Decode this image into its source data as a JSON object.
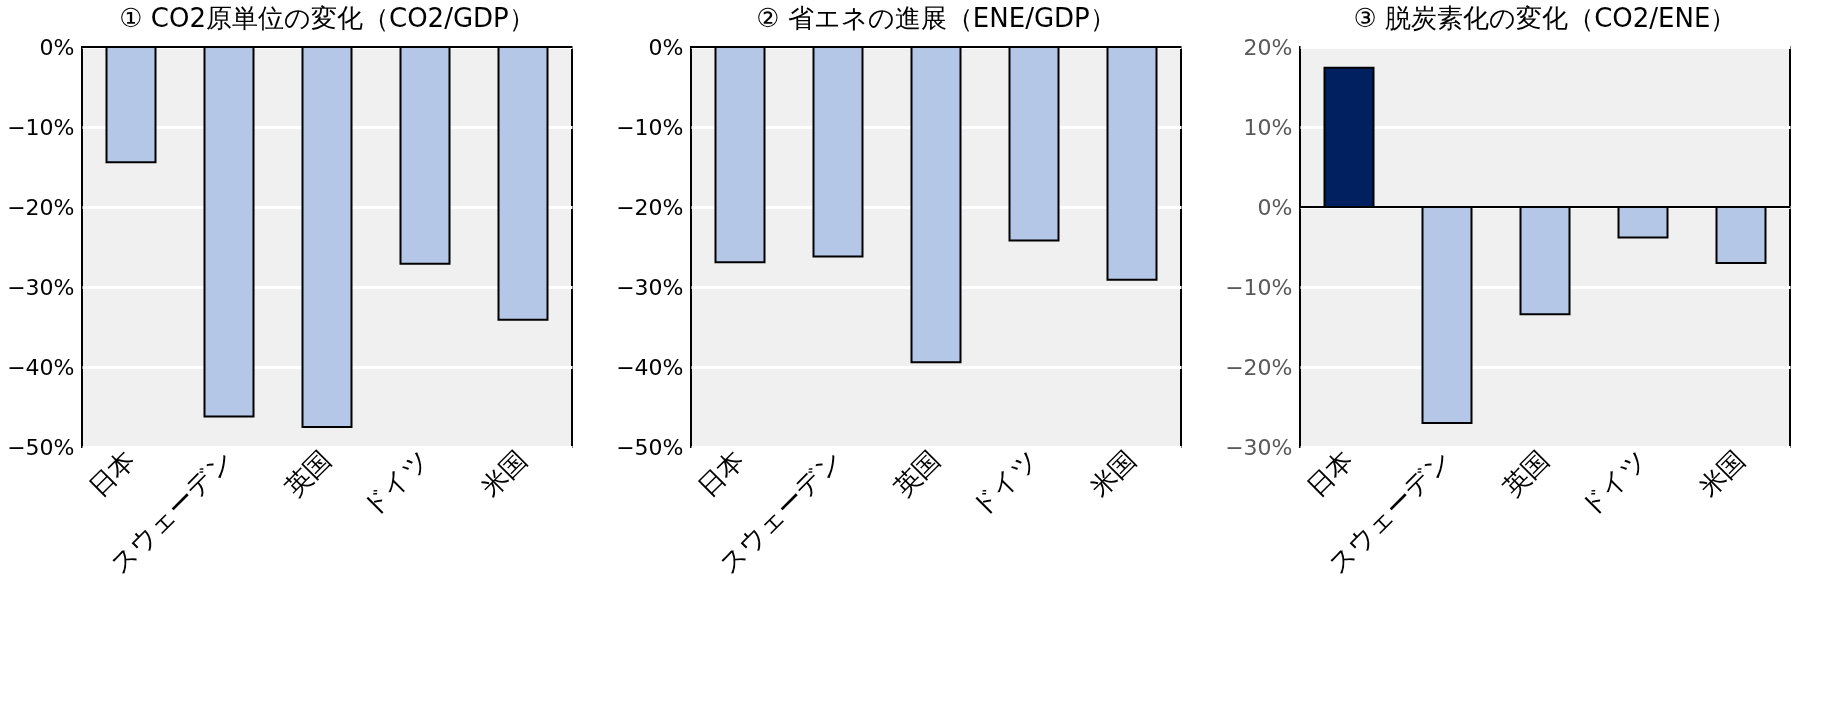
{
  "chart_data": [
    {
      "type": "bar",
      "title": "① CO2原単位の変化（CO2/GDP）",
      "categories": [
        "日本",
        "スウェーデン",
        "英国",
        "ドイツ",
        "米国"
      ],
      "values": [
        -14.4,
        -46.2,
        -47.5,
        -27.1,
        -34.1
      ],
      "colors": [
        "#b4c7e7",
        "#b4c7e7",
        "#b4c7e7",
        "#b4c7e7",
        "#b4c7e7"
      ],
      "ylim": [
        -50,
        0
      ],
      "yticks": [
        {
          "value": 0,
          "label": "0%"
        },
        {
          "value": -10,
          "label": "−10%"
        },
        {
          "value": -20,
          "label": "−20%"
        },
        {
          "value": -30,
          "label": "−30%"
        },
        {
          "value": -40,
          "label": "−40%"
        },
        {
          "value": -50,
          "label": "−50%"
        }
      ],
      "grid": "y"
    },
    {
      "type": "bar",
      "title": "② 省エネの進展（ENE/GDP）",
      "categories": [
        "日本",
        "スウェーデン",
        "英国",
        "ドイツ",
        "米国"
      ],
      "values": [
        -26.9,
        -26.2,
        -39.4,
        -24.2,
        -29.1
      ],
      "colors": [
        "#b4c7e7",
        "#b4c7e7",
        "#b4c7e7",
        "#b4c7e7",
        "#b4c7e7"
      ],
      "ylim": [
        -50,
        0
      ],
      "yticks": [
        {
          "value": 0,
          "label": "0%"
        },
        {
          "value": -10,
          "label": "−10%"
        },
        {
          "value": -20,
          "label": "−20%"
        },
        {
          "value": -30,
          "label": "−30%"
        },
        {
          "value": -40,
          "label": "−40%"
        },
        {
          "value": -50,
          "label": "−50%"
        }
      ],
      "grid": "y"
    },
    {
      "type": "bar",
      "title": "③ 脱炭素化の変化（CO2/ENE）",
      "categories": [
        "日本",
        "スウェーデン",
        "英国",
        "ドイツ",
        "米国"
      ],
      "values": [
        17.4,
        -27.0,
        -13.4,
        -3.8,
        -7.0
      ],
      "colors": [
        "#002060",
        "#b4c7e7",
        "#b4c7e7",
        "#b4c7e7",
        "#b4c7e7"
      ],
      "ylim": [
        -30,
        20
      ],
      "yticks": [
        {
          "value": 20,
          "label": "20%"
        },
        {
          "value": 10,
          "label": "10%"
        },
        {
          "value": 0,
          "label": "0%"
        },
        {
          "value": -10,
          "label": "−10%"
        },
        {
          "value": -20,
          "label": "−20%"
        },
        {
          "value": -30,
          "label": "−30%"
        }
      ],
      "grid": "y"
    }
  ]
}
